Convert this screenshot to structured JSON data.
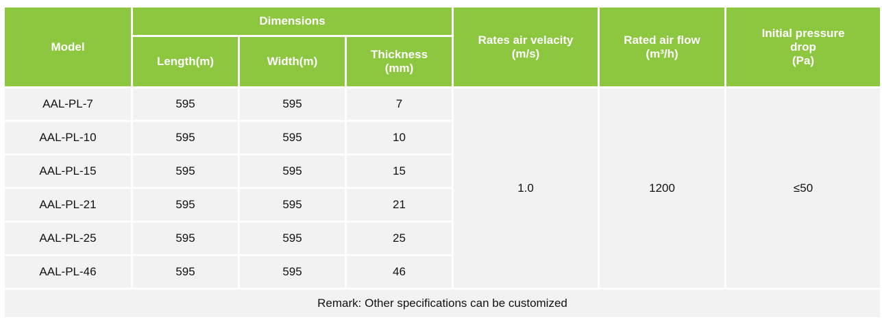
{
  "table": {
    "headers": {
      "model": "Model",
      "dimensions": "Dimensions",
      "length": "Length(m)",
      "width": "Width(m)",
      "thickness_line1": "Thickness",
      "thickness_line2": "(mm)",
      "velocity_line1": "Rates air velacity",
      "velocity_line2": "(m/s)",
      "airflow_line1": "Rated air flow",
      "airflow_line2": "(m³/h)",
      "pressure_line1": "Initial pressure",
      "pressure_line2": "drop",
      "pressure_line3": "(Pa)"
    },
    "rows": [
      {
        "model": "AAL-PL-7",
        "length": "595",
        "width": "595",
        "thickness": "7"
      },
      {
        "model": "AAL-PL-10",
        "length": "595",
        "width": "595",
        "thickness": "10"
      },
      {
        "model": "AAL-PL-15",
        "length": "595",
        "width": "595",
        "thickness": "15"
      },
      {
        "model": "AAL-PL-21",
        "length": "595",
        "width": "595",
        "thickness": "21"
      },
      {
        "model": "AAL-PL-25",
        "length": "595",
        "width": "595",
        "thickness": "25"
      },
      {
        "model": "AAL-PL-46",
        "length": "595",
        "width": "595",
        "thickness": "46"
      }
    ],
    "shared": {
      "velocity": "1.0",
      "airflow": "1200",
      "pressure": "≤50"
    },
    "remark": "Remark: Other specifications can be customized"
  },
  "colors": {
    "header_bg": "#8dc63f",
    "header_text": "#ffffff",
    "cell_bg": "#f2f2f2"
  }
}
